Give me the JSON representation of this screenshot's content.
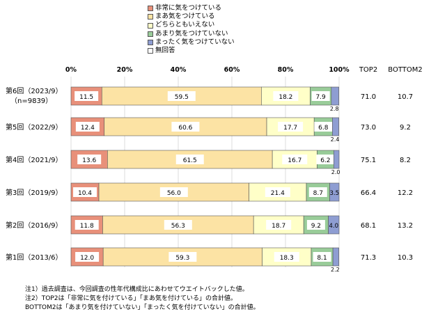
{
  "chart_data": {
    "type": "bar",
    "orientation": "horizontal-stacked-100",
    "x_ticks": [
      "0%",
      "20%",
      "40%",
      "60%",
      "80%",
      "100%"
    ],
    "xlim": [
      0,
      100
    ],
    "series": [
      {
        "name": "非常に気をつけている",
        "color": "#E8907A"
      },
      {
        "name": "まあ気をつけている",
        "color": "#FCE3A4"
      },
      {
        "name": "どちらともいえない",
        "color": "#FFFFC8"
      },
      {
        "name": "あまり気をつけていない",
        "color": "#99CC99"
      },
      {
        "name": "まったく気をつけていない",
        "color": "#8E9DD2"
      },
      {
        "name": "無回答",
        "color": "#FFFFFF"
      }
    ],
    "rows": [
      {
        "label": "第6回（2023/9）",
        "sublabel": "（n=9839）",
        "values": [
          11.5,
          59.5,
          18.2,
          7.9,
          2.8
        ],
        "value_labels": [
          "11.5",
          "59.5",
          "18.2",
          "7.9",
          "2.8"
        ],
        "top2": "71.0",
        "bottom2": "10.7"
      },
      {
        "label": "第5回（2022/9）",
        "sublabel": "",
        "values": [
          12.4,
          60.6,
          17.7,
          6.8,
          2.4
        ],
        "value_labels": [
          "12.4",
          "60.6",
          "17.7",
          "6.8",
          "2.4"
        ],
        "top2": "73.0",
        "bottom2": "9.2"
      },
      {
        "label": "第4回（2021/9）",
        "sublabel": "",
        "values": [
          13.6,
          61.5,
          16.7,
          6.2,
          2.0
        ],
        "value_labels": [
          "13.6",
          "61.5",
          "16.7",
          "6.2",
          "2.0"
        ],
        "top2": "75.1",
        "bottom2": "8.2"
      },
      {
        "label": "第3回（2019/9）",
        "sublabel": "",
        "values": [
          10.4,
          56.0,
          21.4,
          8.7,
          3.5
        ],
        "value_labels": [
          "10.4",
          "56.0",
          "21.4",
          "8.7",
          "3.5"
        ],
        "top2": "66.4",
        "bottom2": "12.2"
      },
      {
        "label": "第2回（2016/9）",
        "sublabel": "",
        "values": [
          11.8,
          56.3,
          18.7,
          9.2,
          4.0
        ],
        "value_labels": [
          "11.8",
          "56.3",
          "18.7",
          "9.2",
          "4.0"
        ],
        "top2": "68.1",
        "bottom2": "13.2"
      },
      {
        "label": "第1回（2013/6）",
        "sublabel": "",
        "values": [
          12.0,
          59.3,
          18.3,
          8.1,
          2.2
        ],
        "value_labels": [
          "12.0",
          "59.3",
          "18.3",
          "8.1",
          "2.2"
        ],
        "top2": "71.3",
        "bottom2": "10.3"
      }
    ],
    "summary_headers": [
      "TOP2",
      "BOTTOM2"
    ],
    "legend_position": "top"
  },
  "notes": [
    "注1）過去調査は、今回調査の性年代構成比にあわせてウエイトバックした値。",
    "注2）TOP2は「非常に気を付けている」「まあ気を付けている」の合計値。",
    "BOTTOM2は「あまり気を付けていない」「まったく気を付けていない」の合計値。"
  ]
}
